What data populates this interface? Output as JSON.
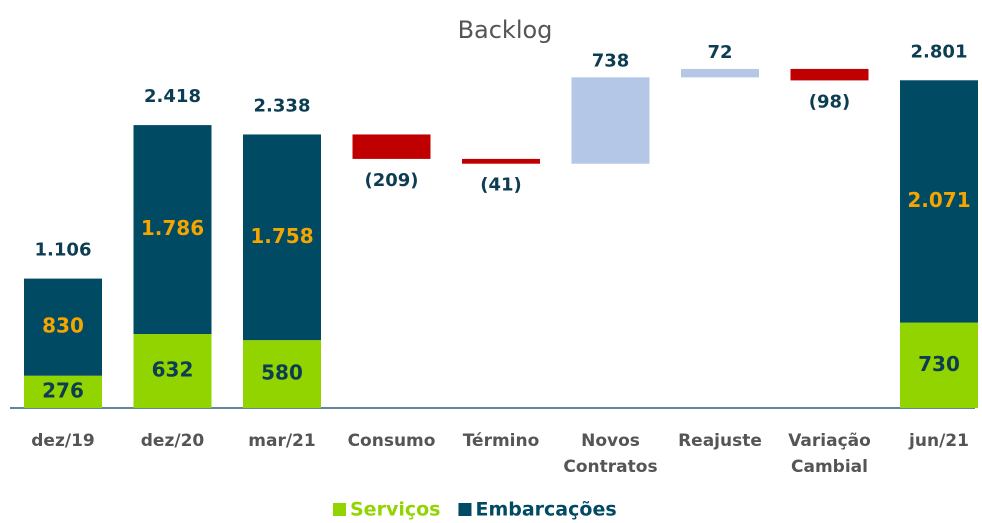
{
  "chart_data": {
    "type": "waterfall",
    "title": "Backlog",
    "categories": [
      "dez/19",
      "dez/20",
      "mar/21",
      "Consumo",
      "Término",
      "Novos Contratos",
      "Reajuste",
      "Variação Cambial",
      "jun/21"
    ],
    "series": [
      {
        "name": "Serviços",
        "color": "#92d400",
        "label_color": "#0d3d52",
        "values": [
          276,
          632,
          580,
          null,
          null,
          null,
          null,
          null,
          730
        ]
      },
      {
        "name": "Embarcações",
        "color": "#004a63",
        "label_color": "#f5a500",
        "values": [
          830,
          1786,
          1758,
          null,
          null,
          null,
          null,
          null,
          2071
        ],
        "value_labels": [
          "830",
          "1.786",
          "1.758",
          null,
          null,
          null,
          null,
          null,
          "2.071"
        ]
      }
    ],
    "totals": {
      "values": [
        1106,
        2418,
        2338,
        null,
        null,
        null,
        null,
        null,
        2801
      ],
      "value_labels": [
        "1.106",
        "2.418",
        "2.338",
        null,
        null,
        null,
        null,
        null,
        "2.801"
      ]
    },
    "changes": {
      "values": [
        null,
        null,
        null,
        -209,
        -41,
        738,
        72,
        -98,
        null
      ],
      "value_labels": [
        null,
        null,
        null,
        "(209)",
        "(41)",
        "738",
        "72",
        "(98)",
        null
      ],
      "increase_color": "#b4c7e7",
      "decrease_color": "#c00000"
    }
  }
}
